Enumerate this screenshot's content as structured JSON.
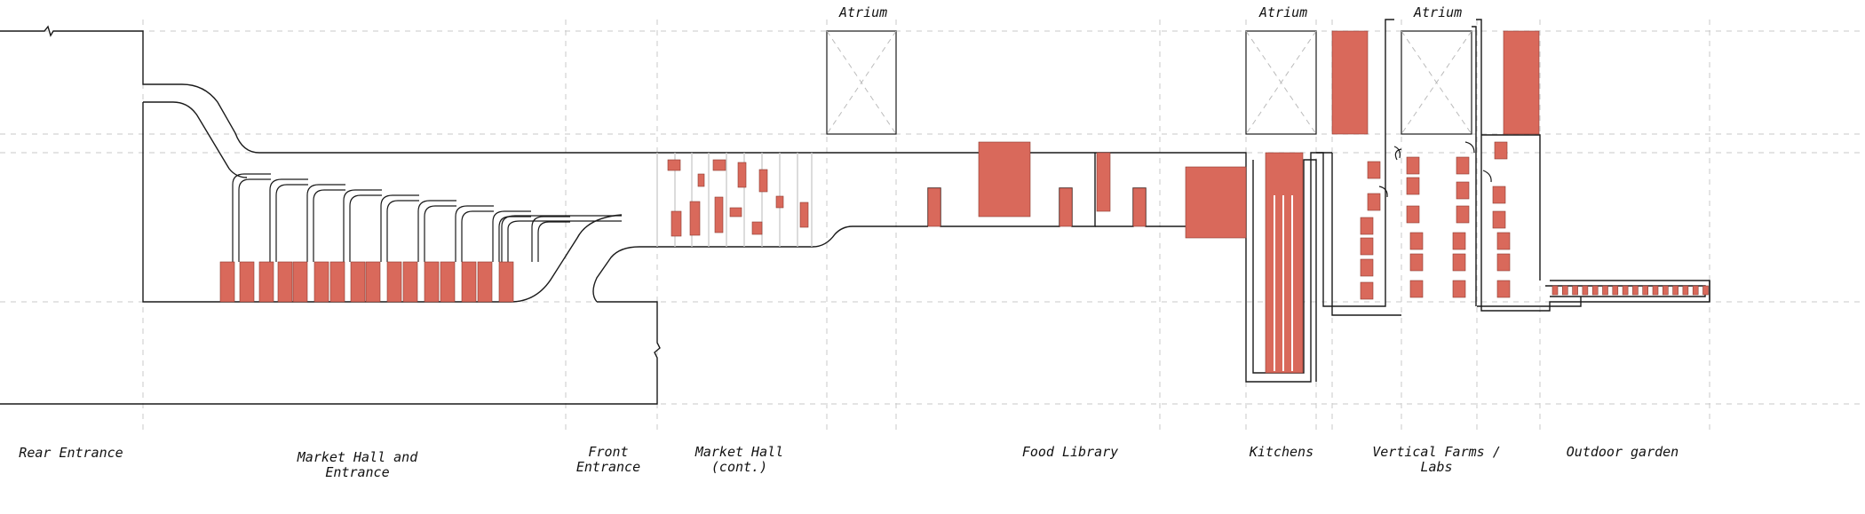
{
  "diagram": {
    "zones": [
      {
        "id": "rear-entrance",
        "label": "Rear Entrance"
      },
      {
        "id": "market-hall-and-entrance",
        "label": "Market Hall and\nEntrance"
      },
      {
        "id": "front-entrance",
        "label": "Front\nEntrance"
      },
      {
        "id": "market-hall-cont",
        "label": "Market Hall\n(cont.)"
      },
      {
        "id": "food-library",
        "label": "Food Library"
      },
      {
        "id": "kitchens",
        "label": "Kitchens"
      },
      {
        "id": "vertical-farms-labs",
        "label": "Vertical Farms /\nLabs"
      },
      {
        "id": "outdoor-garden",
        "label": "Outdoor garden"
      }
    ],
    "atria": [
      {
        "label": "Atrium"
      },
      {
        "label": "Atrium"
      },
      {
        "label": "Atrium"
      }
    ],
    "colors": {
      "fill": "#d9695b",
      "line": "#1a1a1a",
      "grid": "#c8c8c8"
    }
  }
}
